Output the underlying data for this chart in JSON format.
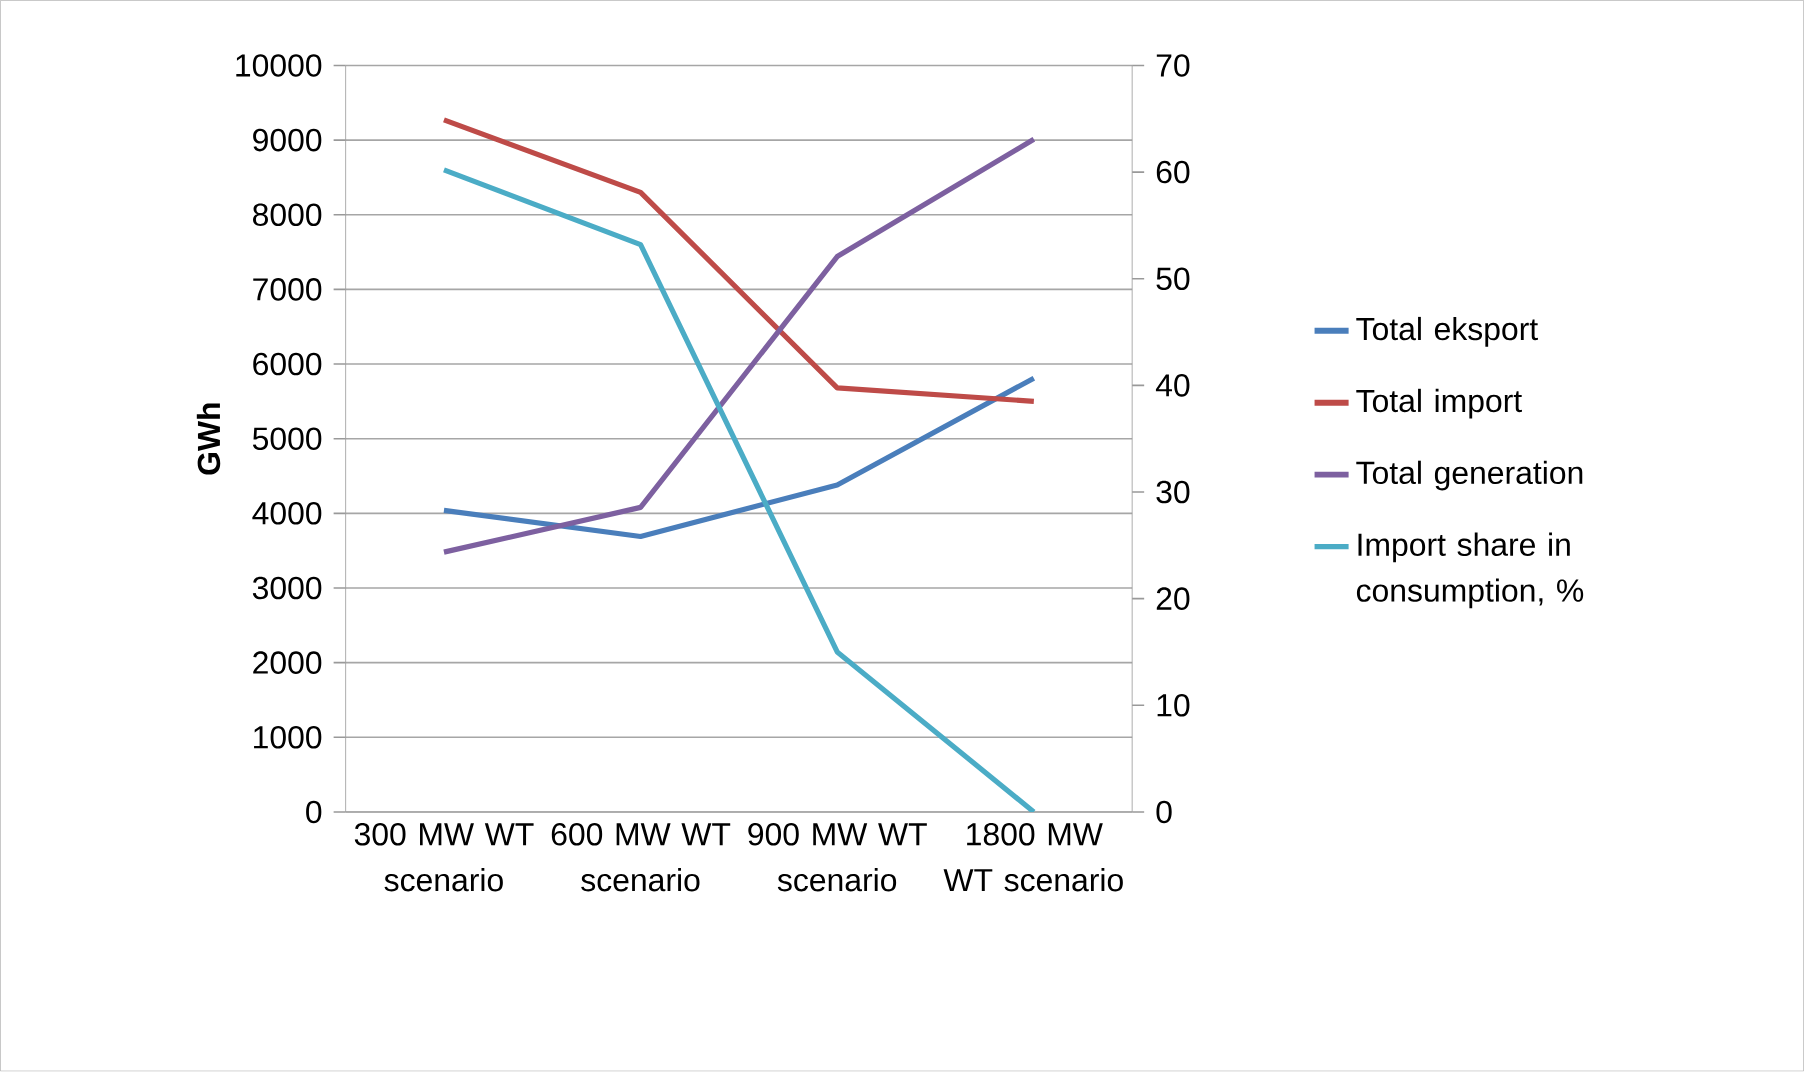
{
  "chart_data": {
    "type": "line",
    "ylabel": "GWh",
    "categories": [
      "300 MW WT scenario",
      "600 MW WT scenario",
      "900 MW WT scenario",
      "1800 MW WT scenario"
    ],
    "series": [
      {
        "name": "Total eksport",
        "color": "#4a7ebb",
        "values": [
          4040,
          3690,
          4380,
          5810
        ]
      },
      {
        "name": "Total import",
        "color": "#be4b48",
        "values": [
          9270,
          8300,
          5680,
          5500
        ]
      },
      {
        "name": "Total generation",
        "color": "#7d60a0",
        "values": [
          3480,
          4080,
          7440,
          9010
        ]
      },
      {
        "name": "Import share in consumption, %",
        "color": "#4bacc6",
        "axis": "y2",
        "values": [
          60.2,
          53.2,
          15.0,
          0
        ]
      }
    ],
    "ylim": [
      0,
      10000
    ],
    "yticks": [
      0,
      1000,
      2000,
      3000,
      4000,
      5000,
      6000,
      7000,
      8000,
      9000,
      10000
    ],
    "y2lim": [
      0,
      70
    ],
    "y2ticks": [
      0,
      10,
      20,
      30,
      40,
      50,
      60,
      70
    ],
    "grid": "y",
    "legend": "right",
    "marker": "none"
  }
}
